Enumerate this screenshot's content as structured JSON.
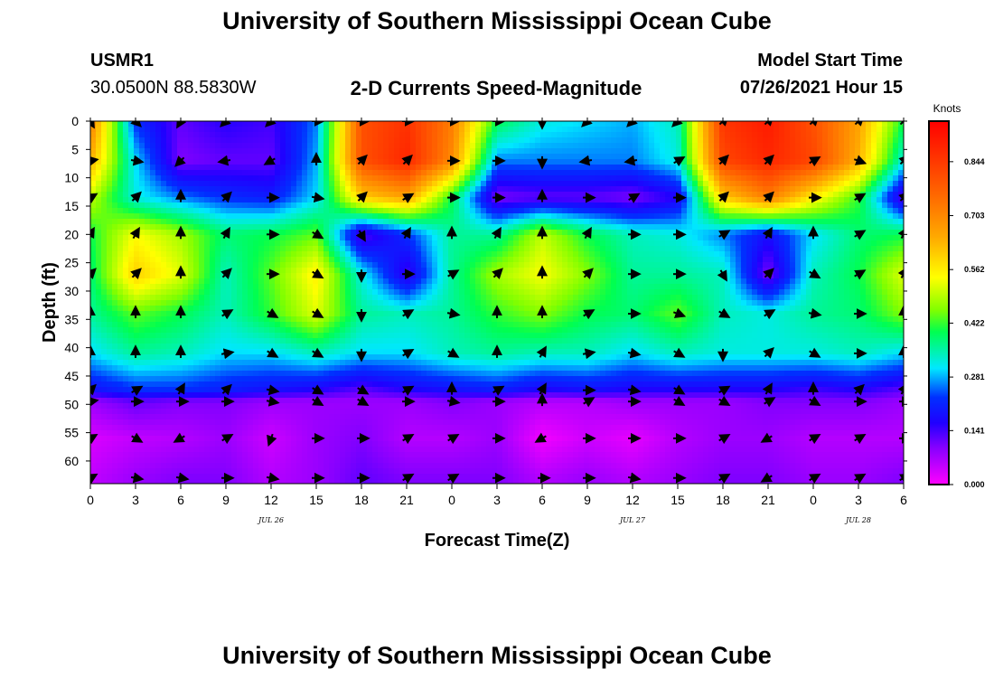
{
  "header": {
    "title": "University of Southern Mississippi Ocean Cube",
    "station_id": "USMR1",
    "coords": "30.0500N  88.5830W",
    "plot_title": "2-D Currents Speed-Magnitude",
    "model_start_label": "Model Start Time",
    "model_start_value": "07/26/2021 Hour 15"
  },
  "footer": {
    "title": "University of Southern Mississippi Ocean Cube"
  },
  "chart_data": {
    "type": "heatmap",
    "title": "2-D Currents Speed-Magnitude",
    "xlabel": "Forecast Time(Z)",
    "ylabel": "Depth (ft)",
    "x_ticks": [
      "0",
      "3",
      "6",
      "9",
      "12",
      "15",
      "18",
      "21",
      "0",
      "3",
      "6",
      "9",
      "12",
      "15",
      "18",
      "21",
      "0",
      "3",
      "6"
    ],
    "x_range_hours": [
      0,
      54
    ],
    "y_ticks": [
      "0",
      "5",
      "10",
      "15",
      "20",
      "25",
      "30",
      "35",
      "40",
      "45",
      "50",
      "55",
      "60"
    ],
    "y_range_ft": [
      0,
      64
    ],
    "date_labels": [
      {
        "text": "JUL 26",
        "hour": 12
      },
      {
        "text": "JUL 27",
        "hour": 36
      },
      {
        "text": "JUL 28",
        "hour": 51
      }
    ],
    "colorbar": {
      "unit": "Knots",
      "min": 0.0,
      "max": 0.95,
      "ticks": [
        "0.844",
        "0.703",
        "0.562",
        "0.422",
        "0.281",
        "0.141",
        "0.000"
      ],
      "tick_values": [
        0.844,
        0.703,
        0.562,
        0.422,
        0.281,
        0.141,
        0.0
      ]
    },
    "speed_grid": {
      "hours": [
        0,
        3,
        6,
        9,
        12,
        15,
        18,
        21,
        24,
        27,
        30,
        33,
        36,
        39,
        42,
        45,
        48,
        51,
        54
      ],
      "depths_ft": [
        0,
        7,
        13.5,
        20,
        27,
        34,
        41,
        47.5,
        49.5,
        56,
        63
      ],
      "values": [
        [
          0.72,
          0.22,
          0.12,
          0.16,
          0.14,
          0.26,
          0.8,
          0.86,
          0.72,
          0.4,
          0.32,
          0.3,
          0.28,
          0.34,
          0.85,
          0.9,
          0.8,
          0.66,
          0.4
        ],
        [
          0.64,
          0.3,
          0.1,
          0.12,
          0.12,
          0.28,
          0.8,
          0.88,
          0.7,
          0.26,
          0.26,
          0.26,
          0.26,
          0.32,
          0.82,
          0.88,
          0.82,
          0.64,
          0.32
        ],
        [
          0.5,
          0.32,
          0.26,
          0.22,
          0.2,
          0.3,
          0.6,
          0.66,
          0.4,
          0.1,
          0.12,
          0.12,
          0.1,
          0.16,
          0.6,
          0.72,
          0.56,
          0.42,
          0.12
        ],
        [
          0.4,
          0.54,
          0.48,
          0.38,
          0.4,
          0.44,
          0.12,
          0.22,
          0.36,
          0.36,
          0.5,
          0.4,
          0.34,
          0.32,
          0.26,
          0.18,
          0.3,
          0.38,
          0.4
        ],
        [
          0.38,
          0.6,
          0.52,
          0.34,
          0.44,
          0.56,
          0.32,
          0.14,
          0.36,
          0.48,
          0.54,
          0.46,
          0.36,
          0.36,
          0.34,
          0.1,
          0.34,
          0.4,
          0.52
        ],
        [
          0.36,
          0.44,
          0.4,
          0.34,
          0.42,
          0.52,
          0.36,
          0.34,
          0.36,
          0.42,
          0.46,
          0.4,
          0.38,
          0.44,
          0.34,
          0.32,
          0.36,
          0.38,
          0.46
        ],
        [
          0.3,
          0.36,
          0.34,
          0.3,
          0.3,
          0.34,
          0.3,
          0.3,
          0.34,
          0.36,
          0.34,
          0.34,
          0.3,
          0.34,
          0.32,
          0.32,
          0.32,
          0.34,
          0.3
        ],
        [
          0.18,
          0.22,
          0.22,
          0.2,
          0.18,
          0.16,
          0.12,
          0.16,
          0.18,
          0.2,
          0.16,
          0.18,
          0.16,
          0.16,
          0.16,
          0.16,
          0.14,
          0.16,
          0.12
        ],
        [
          0.08,
          0.12,
          0.1,
          0.1,
          0.08,
          0.08,
          0.08,
          0.08,
          0.1,
          0.08,
          0.06,
          0.06,
          0.08,
          0.08,
          0.08,
          0.1,
          0.1,
          0.1,
          0.08
        ],
        [
          0.03,
          0.05,
          0.06,
          0.08,
          0.04,
          0.08,
          0.1,
          0.06,
          0.06,
          0.08,
          0.01,
          0.04,
          0.02,
          0.06,
          0.08,
          0.08,
          0.06,
          0.06,
          0.06
        ],
        [
          0.05,
          0.08,
          0.1,
          0.1,
          0.06,
          0.08,
          0.12,
          0.1,
          0.1,
          0.1,
          0.06,
          0.08,
          0.06,
          0.08,
          0.1,
          0.1,
          0.08,
          0.08,
          0.1
        ]
      ]
    },
    "vectors": {
      "hours": [
        0,
        3,
        6,
        9,
        12,
        15,
        18,
        21,
        24,
        27,
        30,
        33,
        36,
        39,
        42,
        45,
        48,
        51,
        54
      ],
      "depths_ft": [
        0,
        7,
        13.5,
        20,
        27,
        34,
        41,
        47.5,
        49.5,
        56,
        63
      ],
      "directions_deg_cw_from_north": [
        [
          150,
          135,
          210,
          225,
          225,
          90,
          90,
          90,
          90,
          90,
          180,
          225,
          225,
          225,
          45,
          45,
          45,
          45,
          45
        ],
        [
          80,
          100,
          225,
          260,
          240,
          0,
          45,
          45,
          90,
          90,
          180,
          260,
          260,
          60,
          45,
          45,
          60,
          110,
          45
        ],
        [
          60,
          45,
          0,
          45,
          90,
          100,
          45,
          60,
          90,
          90,
          0,
          90,
          60,
          90,
          45,
          45,
          90,
          60,
          45
        ],
        [
          30,
          30,
          0,
          30,
          90,
          120,
          150,
          30,
          0,
          30,
          0,
          30,
          90,
          90,
          60,
          30,
          0,
          60,
          30
        ],
        [
          45,
          45,
          0,
          45,
          90,
          120,
          180,
          90,
          60,
          45,
          0,
          45,
          90,
          90,
          150,
          45,
          120,
          60,
          30
        ],
        [
          0,
          0,
          0,
          60,
          120,
          120,
          180,
          60,
          100,
          0,
          0,
          60,
          90,
          110,
          120,
          60,
          100,
          90,
          0
        ],
        [
          0,
          0,
          0,
          80,
          120,
          120,
          180,
          60,
          120,
          0,
          30,
          80,
          100,
          120,
          180,
          45,
          120,
          90,
          0
        ],
        [
          45,
          60,
          30,
          45,
          100,
          120,
          120,
          60,
          0,
          60,
          30,
          90,
          100,
          120,
          60,
          30,
          0,
          45,
          30
        ],
        [
          80,
          90,
          90,
          90,
          100,
          120,
          120,
          90,
          100,
          90,
          0,
          60,
          90,
          120,
          120,
          60,
          120,
          90,
          90
        ],
        [
          60,
          120,
          240,
          60,
          200,
          90,
          90,
          60,
          60,
          90,
          240,
          90,
          90,
          90,
          60,
          240,
          60,
          60,
          90
        ],
        [
          60,
          100,
          100,
          90,
          100,
          90,
          90,
          60,
          60,
          90,
          90,
          90,
          100,
          90,
          60,
          240,
          60,
          60,
          60
        ]
      ]
    }
  }
}
